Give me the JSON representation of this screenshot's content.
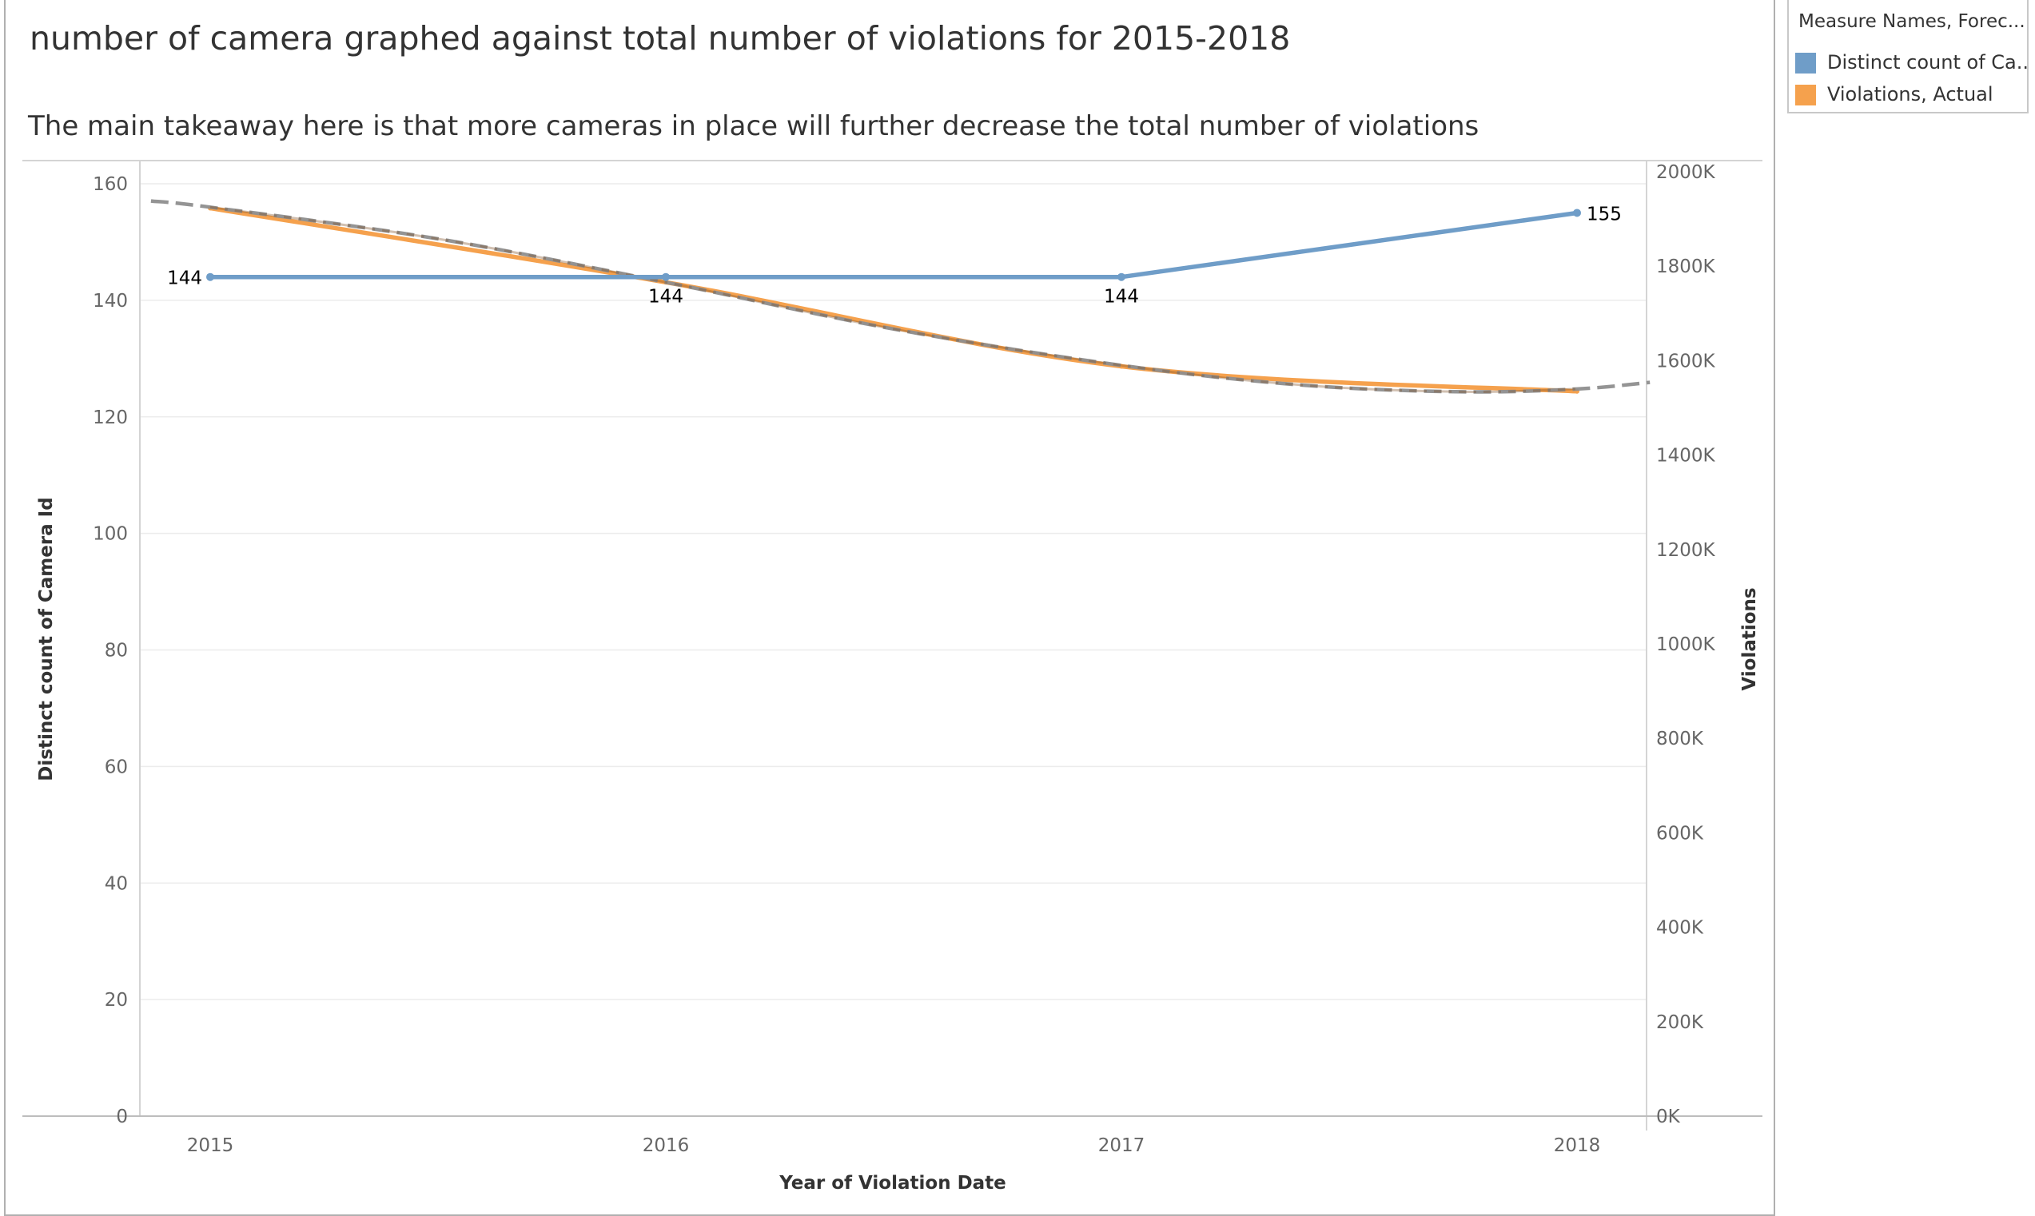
{
  "title": "number of camera graphed against total number of violations for 2015-2018",
  "subtitle": "The main takeaway here is that more cameras in place will further decrease the total number of violations",
  "legend": {
    "title": "Measure Names, Forec...",
    "items": [
      {
        "label": "Distinct count of Ca..",
        "color": "#6f9dc8"
      },
      {
        "label": "Violations, Actual",
        "color": "#f5a14d"
      }
    ]
  },
  "chart_data": {
    "type": "line",
    "categories": [
      "2015",
      "2016",
      "2017",
      "2018"
    ],
    "xlabel": "Year of Violation Date",
    "ylabel_left": "Distinct count of Camera Id",
    "ylabel_right": "Violations",
    "ylim_left": [
      0,
      160
    ],
    "ylim_right": [
      0,
      2000000
    ],
    "left_ticks": [
      "0",
      "20",
      "40",
      "60",
      "80",
      "100",
      "120",
      "140",
      "160"
    ],
    "right_ticks": [
      "0K",
      "200K",
      "400K",
      "600K",
      "800K",
      "1000K",
      "1200K",
      "1400K",
      "1600K",
      "1800K",
      "2000K"
    ],
    "grid": true,
    "legend_position": "top-right",
    "series": [
      {
        "name": "Distinct count of Ca..",
        "axis": "left",
        "color": "#6f9dc8",
        "values": [
          144,
          144,
          144,
          155
        ],
        "labels": [
          "144",
          "144",
          "144",
          "155"
        ]
      },
      {
        "name": "Violations, Actual",
        "axis": "right",
        "color": "#f5a14d",
        "values": [
          1923000,
          1766000,
          1588000,
          1535000
        ]
      },
      {
        "name": "Forecast",
        "axis": "right",
        "color": "#8a8a8a",
        "style": "dashed",
        "x": [
          2014.87,
          2015,
          2015.5,
          2016,
          2016.5,
          2017,
          2017.4,
          2017.75,
          2018,
          2018.16
        ],
        "values": [
          1938000,
          1925000,
          1858000,
          1766000,
          1667000,
          1590000,
          1548000,
          1534000,
          1540000,
          1554000
        ]
      }
    ]
  }
}
